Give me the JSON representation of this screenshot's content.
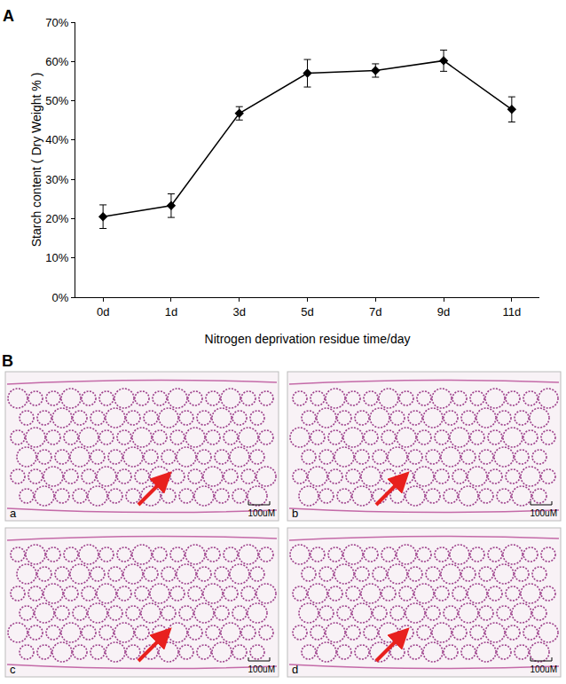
{
  "chart_data": {
    "type": "line",
    "panel_label": "A",
    "x_label": "Nitrogen deprivation residue time/day",
    "y_label": "Starch content ( Dry Weight % )",
    "categories": [
      "0d",
      "1d",
      "3d",
      "5d",
      "7d",
      "9d",
      "11d"
    ],
    "values": [
      20.5,
      23.3,
      46.8,
      57.0,
      57.7,
      60.2,
      47.8
    ],
    "errors": [
      3.0,
      3.0,
      1.7,
      3.5,
      1.7,
      2.7,
      3.2
    ],
    "color": "#000000",
    "marker": "diamond",
    "line_style": "solid",
    "grid": false,
    "ylim": [
      0,
      70
    ],
    "yticks": [
      {
        "value": 0,
        "label": "0%"
      },
      {
        "value": 10,
        "label": "10%"
      },
      {
        "value": 20,
        "label": "20%"
      },
      {
        "value": 30,
        "label": "30%"
      },
      {
        "value": 40,
        "label": "40%"
      },
      {
        "value": 50,
        "label": "50%"
      },
      {
        "value": 60,
        "label": "60%"
      },
      {
        "value": 70,
        "label": "70%"
      }
    ]
  },
  "panel_b": {
    "label": "B",
    "images": [
      {
        "label": "a",
        "scale_bar": "100uM"
      },
      {
        "label": "b",
        "scale_bar": "100uM"
      },
      {
        "label": "c",
        "scale_bar": "100uM"
      },
      {
        "label": "d",
        "scale_bar": "100uM"
      }
    ]
  }
}
